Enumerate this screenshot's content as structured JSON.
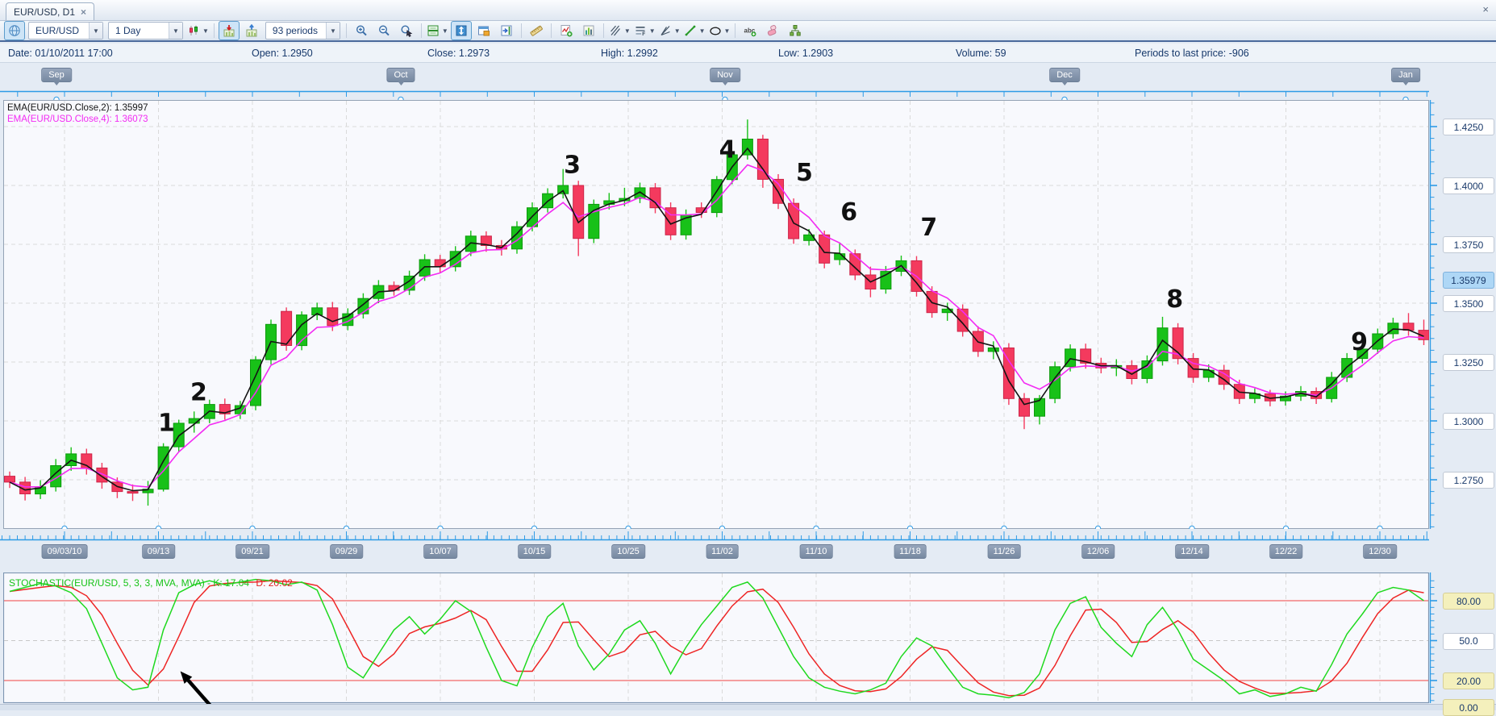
{
  "tab": {
    "title": "EUR/USD, D1",
    "close_glyph": "×"
  },
  "window": {
    "close_glyph": "×"
  },
  "toolbar": {
    "symbol": "EUR/USD",
    "timeframe": "1 Day",
    "periods": "93 periods",
    "items": [
      {
        "type": "button",
        "icon": "globe-icon",
        "active": true
      },
      {
        "type": "combo",
        "name": "symbol-select",
        "bind": "symbol"
      },
      {
        "type": "combo",
        "name": "timeframe-select",
        "bind": "timeframe"
      },
      {
        "type": "button",
        "icon": "chart-style-candles-icon",
        "dropdown": true
      },
      {
        "type": "sep"
      },
      {
        "type": "button",
        "icon": "insert-symbol-below-icon",
        "active": true
      },
      {
        "type": "button",
        "icon": "insert-symbol-above-icon"
      },
      {
        "type": "combo",
        "name": "periods-select",
        "bind": "periods"
      },
      {
        "type": "sep"
      },
      {
        "type": "button",
        "icon": "zoom-in-icon"
      },
      {
        "type": "button",
        "icon": "zoom-out-icon"
      },
      {
        "type": "button",
        "icon": "zoom-select-icon"
      },
      {
        "type": "sep"
      },
      {
        "type": "button",
        "icon": "split-panels-icon",
        "dropdown": true
      },
      {
        "type": "button",
        "icon": "fit-vertical-scale-icon",
        "active": true
      },
      {
        "type": "button",
        "icon": "new-panel-icon"
      },
      {
        "type": "button",
        "icon": "go-to-last-icon"
      },
      {
        "type": "sep"
      },
      {
        "type": "button",
        "icon": "ruler-icon"
      },
      {
        "type": "sep"
      },
      {
        "type": "button",
        "icon": "add-indicator-icon"
      },
      {
        "type": "button",
        "icon": "indicator-list-icon"
      },
      {
        "type": "sep"
      },
      {
        "type": "button",
        "icon": "pitchfork-tool-icon",
        "dropdown": true
      },
      {
        "type": "button",
        "icon": "fibonacci-tool-icon",
        "dropdown": true
      },
      {
        "type": "button",
        "icon": "angle-lines-tool-icon",
        "dropdown": true
      },
      {
        "type": "button",
        "icon": "trend-line-tool-icon",
        "dropdown": true
      },
      {
        "type": "button",
        "icon": "ellipse-tool-icon",
        "dropdown": true
      },
      {
        "type": "sep"
      },
      {
        "type": "button",
        "icon": "text-tool-icon"
      },
      {
        "type": "button",
        "icon": "eraser-tool-icon"
      },
      {
        "type": "button",
        "icon": "object-tree-icon"
      }
    ]
  },
  "infobar": {
    "date": "Date: 01/10/2011 17:00",
    "open": "Open: 1.2950",
    "close": "Close: 1.2973",
    "high": "High: 1.2992",
    "low": "Low: 1.2903",
    "volume": "Volume: 59",
    "periods_to_last": "Periods to last price: -906"
  },
  "legend": {
    "ema2": "EMA(EUR/USD.Close,2): 1.35997",
    "ema4": "EMA(EUR/USD.Close,4): 1.36073"
  },
  "colors": {
    "candle_up": "#18c118",
    "candle_up_border": "#0c9a0c",
    "candle_down": "#f43a5e",
    "candle_down_border": "#cc2448",
    "ema2": "#141414",
    "ema4": "#f32bf3",
    "stoch_k": "#1fd91f",
    "stoch_d": "#ee2525",
    "level_line": "#ef4343",
    "grid": "#dadada",
    "ruler": "#2e9be6"
  },
  "chart_data": [
    {
      "type": "candlestick",
      "title": "EUR/USD, D1",
      "month_labels": [
        "Sep",
        "Oct",
        "Nov",
        "Dec",
        "Jan"
      ],
      "x_labels": [
        "09/03/10",
        "09/13",
        "09/21",
        "09/29",
        "10/07",
        "10/15",
        "10/25",
        "11/02",
        "11/10",
        "11/18",
        "11/26",
        "12/06",
        "12/14",
        "12/22",
        "12/30"
      ],
      "y_ticks": [
        "1.4250",
        "1.4000",
        "1.3750",
        "1.3500",
        "1.3250",
        "1.3000",
        "1.2750"
      ],
      "y_tick_values": [
        1.425,
        1.4,
        1.375,
        1.35,
        1.325,
        1.3,
        1.275
      ],
      "ylim": [
        1.2545,
        1.4363
      ],
      "last_price_label": "1.35979",
      "last_price_value": 1.35979,
      "overlays": [
        {
          "name": "EMA(EUR/USD.Close,2)",
          "period": 2,
          "value": "1.35997"
        },
        {
          "name": "EMA(EUR/USD.Close,4)",
          "period": 4,
          "value": "1.36073"
        }
      ],
      "annotations": [
        {
          "label": "1",
          "period": 10.2,
          "price": 1.2958
        },
        {
          "label": "2",
          "period": 12.3,
          "price": 1.3087
        },
        {
          "label": "3",
          "period": 36.6,
          "price": 1.4053
        },
        {
          "label": "4",
          "period": 46.7,
          "price": 1.4118
        },
        {
          "label": "5",
          "period": 51.7,
          "price": 1.4021
        },
        {
          "label": "6",
          "period": 54.6,
          "price": 1.3853
        },
        {
          "label": "7",
          "period": 59.8,
          "price": 1.3788
        },
        {
          "label": "8",
          "period": 75.8,
          "price": 1.3483
        },
        {
          "label": "9",
          "period": 87.8,
          "price": 1.3301
        }
      ],
      "ohlc": [
        [
          1.2765,
          1.2785,
          1.2715,
          1.274
        ],
        [
          1.274,
          1.2762,
          1.2662,
          1.269
        ],
        [
          1.269,
          1.2748,
          1.2668,
          1.272
        ],
        [
          1.272,
          1.2838,
          1.27,
          1.281
        ],
        [
          1.281,
          1.2888,
          1.2788,
          1.286
        ],
        [
          1.286,
          1.2882,
          1.2772,
          1.28
        ],
        [
          1.28,
          1.2822,
          1.2712,
          1.274
        ],
        [
          1.274,
          1.276,
          1.2672,
          1.27
        ],
        [
          1.27,
          1.273,
          1.266,
          1.2695
        ],
        [
          1.2695,
          1.2745,
          1.264,
          1.271
        ],
        [
          1.271,
          1.2905,
          1.27,
          1.289
        ],
        [
          1.289,
          1.3005,
          1.2868,
          1.299
        ],
        [
          1.299,
          1.304,
          1.295,
          1.301
        ],
        [
          1.301,
          1.309,
          1.299,
          1.307
        ],
        [
          1.307,
          1.3095,
          1.3005,
          1.303
        ],
        [
          1.303,
          1.3085,
          1.3008,
          1.3065
        ],
        [
          1.3065,
          1.3275,
          1.3045,
          1.326
        ],
        [
          1.326,
          1.343,
          1.324,
          1.341
        ],
        [
          1.3465,
          1.3482,
          1.3298,
          1.332
        ],
        [
          1.332,
          1.3465,
          1.33,
          1.345
        ],
        [
          1.345,
          1.3502,
          1.3428,
          1.348
        ],
        [
          1.348,
          1.3505,
          1.3382,
          1.3405
        ],
        [
          1.3405,
          1.3478,
          1.3385,
          1.3455
        ],
        [
          1.3455,
          1.3542,
          1.3435,
          1.352
        ],
        [
          1.352,
          1.3598,
          1.35,
          1.3575
        ],
        [
          1.3575,
          1.3592,
          1.3532,
          1.3555
        ],
        [
          1.3555,
          1.3638,
          1.3535,
          1.3615
        ],
        [
          1.3615,
          1.3708,
          1.3595,
          1.3685
        ],
        [
          1.3685,
          1.3705,
          1.3628,
          1.3655
        ],
        [
          1.3655,
          1.3742,
          1.3635,
          1.372
        ],
        [
          1.372,
          1.3808,
          1.37,
          1.3785
        ],
        [
          1.3785,
          1.3805,
          1.3718,
          1.3745
        ],
        [
          1.3745,
          1.3768,
          1.3702,
          1.373
        ],
        [
          1.373,
          1.3848,
          1.371,
          1.3825
        ],
        [
          1.3825,
          1.3928,
          1.3805,
          1.3905
        ],
        [
          1.3905,
          1.3988,
          1.3885,
          1.3965
        ],
        [
          1.3965,
          1.407,
          1.3945,
          1.4
        ],
        [
          1.4,
          1.402,
          1.37,
          1.3775
        ],
        [
          1.3775,
          1.394,
          1.3755,
          1.392
        ],
        [
          1.392,
          1.3968,
          1.3898,
          1.3935
        ],
        [
          1.3935,
          1.399,
          1.3912,
          1.3945
        ],
        [
          1.3945,
          1.4012,
          1.3925,
          1.399
        ],
        [
          1.399,
          1.401,
          1.3882,
          1.3905
        ],
        [
          1.3905,
          1.3928,
          1.3768,
          1.379
        ],
        [
          1.379,
          1.3898,
          1.377,
          1.3875
        ],
        [
          1.3905,
          1.3928,
          1.3862,
          1.3885
        ],
        [
          1.3885,
          1.404,
          1.3865,
          1.4025
        ],
        [
          1.4025,
          1.4145,
          1.4005,
          1.413
        ],
        [
          1.413,
          1.428,
          1.411,
          1.4197
        ],
        [
          1.4197,
          1.4215,
          1.399,
          1.4026
        ],
        [
          1.4026,
          1.4048,
          1.39,
          1.3924
        ],
        [
          1.3924,
          1.3945,
          1.3752,
          1.3774
        ],
        [
          1.3766,
          1.3815,
          1.3745,
          1.379
        ],
        [
          1.379,
          1.3808,
          1.3648,
          1.367
        ],
        [
          1.3685,
          1.3755,
          1.3662,
          1.371
        ],
        [
          1.371,
          1.3728,
          1.3598,
          1.362
        ],
        [
          1.362,
          1.3655,
          1.3525,
          1.356
        ],
        [
          1.356,
          1.3658,
          1.354,
          1.3635
        ],
        [
          1.3635,
          1.3702,
          1.3615,
          1.368
        ],
        [
          1.368,
          1.37,
          1.3528,
          1.355
        ],
        [
          1.355,
          1.3572,
          1.3438,
          1.346
        ],
        [
          1.346,
          1.3502,
          1.3425,
          1.3475
        ],
        [
          1.3475,
          1.3495,
          1.3358,
          1.338
        ],
        [
          1.338,
          1.3402,
          1.3272,
          1.3295
        ],
        [
          1.3295,
          1.3338,
          1.3262,
          1.331
        ],
        [
          1.331,
          1.333,
          1.3068,
          1.3095
        ],
        [
          1.3095,
          1.3118,
          1.2965,
          1.302
        ],
        [
          1.302,
          1.311,
          1.2985,
          1.3095
        ],
        [
          1.3095,
          1.3252,
          1.3075,
          1.323
        ],
        [
          1.323,
          1.3325,
          1.321,
          1.3305
        ],
        [
          1.3305,
          1.3328,
          1.3222,
          1.3245
        ],
        [
          1.3245,
          1.3268,
          1.3202,
          1.3225
        ],
        [
          1.3225,
          1.3262,
          1.319,
          1.3235
        ],
        [
          1.3235,
          1.3258,
          1.3155,
          1.318
        ],
        [
          1.318,
          1.3278,
          1.316,
          1.3255
        ],
        [
          1.3255,
          1.3442,
          1.3235,
          1.3395
        ],
        [
          1.3395,
          1.3415,
          1.324,
          1.3265
        ],
        [
          1.3265,
          1.3288,
          1.3162,
          1.3185
        ],
        [
          1.3185,
          1.324,
          1.3165,
          1.3215
        ],
        [
          1.3215,
          1.3238,
          1.3132,
          1.3155
        ],
        [
          1.3155,
          1.3175,
          1.3072,
          1.3095
        ],
        [
          1.3095,
          1.3138,
          1.3075,
          1.3115
        ],
        [
          1.3115,
          1.3132,
          1.3062,
          1.3085
        ],
        [
          1.3085,
          1.3125,
          1.3065,
          1.3105
        ],
        [
          1.3105,
          1.3148,
          1.3085,
          1.3125
        ],
        [
          1.3125,
          1.3142,
          1.3072,
          1.3095
        ],
        [
          1.3095,
          1.3208,
          1.3078,
          1.3185
        ],
        [
          1.3185,
          1.3288,
          1.3165,
          1.3265
        ],
        [
          1.3265,
          1.3328,
          1.3245,
          1.3305
        ],
        [
          1.3305,
          1.3392,
          1.3285,
          1.337
        ],
        [
          1.337,
          1.3438,
          1.335,
          1.3415
        ],
        [
          1.3415,
          1.3458,
          1.3362,
          1.3385
        ],
        [
          1.3385,
          1.343,
          1.3322,
          1.3345
        ]
      ]
    },
    {
      "type": "line",
      "name": "STOCHASTIC(EUR/USD, 5, 3, 3, MVA, MVA)",
      "legend_k": "STOCHASTIC(EUR/USD, 5, 3, 3, MVA, MVA) - K: 17.04",
      "legend_d": "D: 20.02",
      "k_value": 17.04,
      "d_value": 20.02,
      "levels": [
        80,
        50,
        20,
        0
      ],
      "level_labels": [
        {
          "text": "80.00",
          "value": 80,
          "highlight": true
        },
        {
          "text": "50.0",
          "value": 50,
          "highlight": false
        },
        {
          "text": "20.00",
          "value": 20,
          "highlight": true
        },
        {
          "text": "0.00",
          "value": 0,
          "highlight": true
        }
      ],
      "ylim": [
        0,
        100
      ],
      "d_smoothing": 3,
      "k": [
        87,
        90,
        93,
        91,
        86,
        74,
        48,
        22,
        13,
        15,
        58,
        86,
        92,
        95,
        92,
        94,
        96,
        95,
        92,
        94,
        88,
        62,
        30,
        22,
        40,
        58,
        68,
        55,
        66,
        80,
        72,
        45,
        20,
        16,
        45,
        68,
        78,
        46,
        28,
        40,
        58,
        65,
        48,
        25,
        45,
        62,
        76,
        90,
        94,
        82,
        60,
        38,
        22,
        15,
        12,
        10,
        13,
        18,
        38,
        52,
        46,
        30,
        15,
        10,
        9,
        7,
        11,
        25,
        58,
        78,
        83,
        60,
        48,
        38,
        62,
        75,
        58,
        36,
        28,
        20,
        10,
        13,
        8,
        10,
        15,
        12,
        32,
        55,
        70,
        86,
        90,
        88,
        80
      ],
      "arrow": {
        "from_period": 13.1,
        "from_value": 0.6,
        "to_period": 11.1,
        "to_value": 27
      }
    }
  ]
}
